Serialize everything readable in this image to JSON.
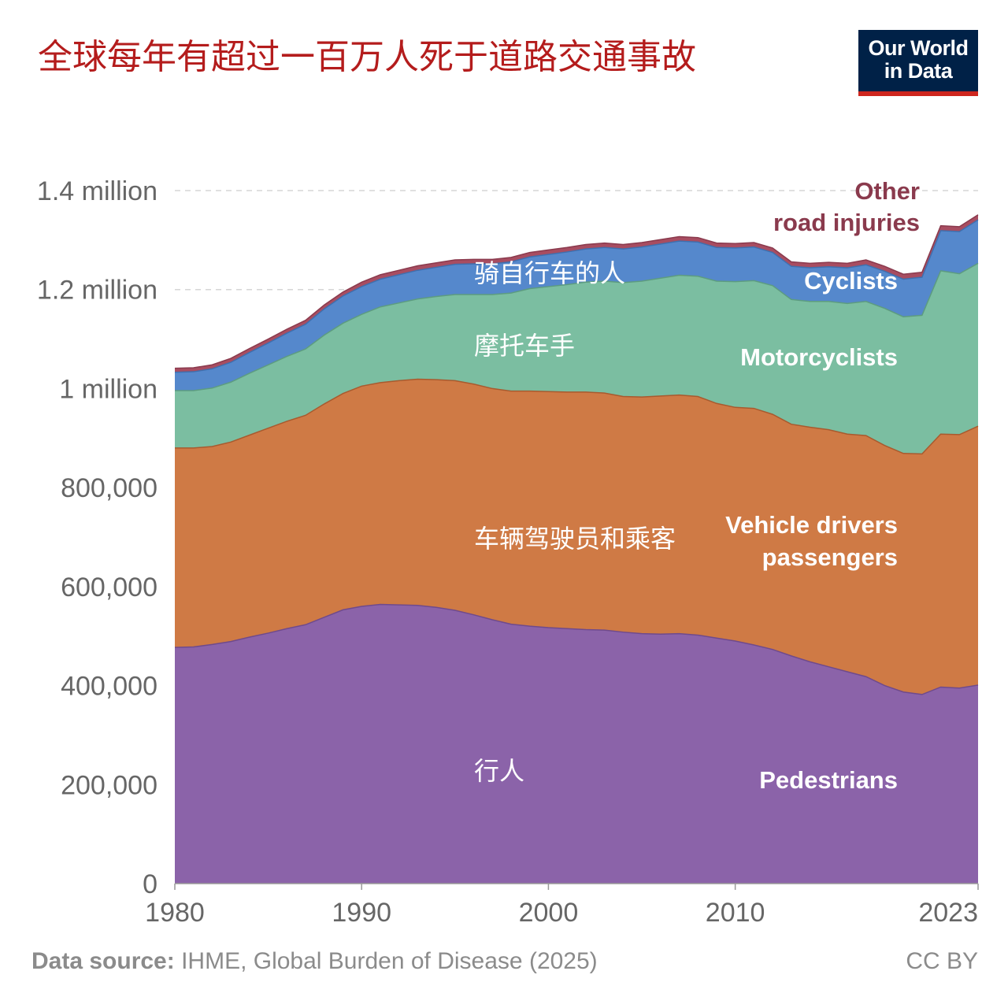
{
  "title": "全球每年有超过一百万人死于道路交通事故",
  "logo": {
    "line1": "Our World",
    "line2": "in Data"
  },
  "footer": {
    "source_label": "Data source:",
    "source_text": "IHME, Global Burden of Disease (2025)",
    "license": "CC BY"
  },
  "colors": {
    "pedestrians": "#8b63a9",
    "vehicle": "#cf7a45",
    "motorcyclists": "#7bbea1",
    "cyclists": "#5588cc",
    "other": "#a84d61",
    "grid": "#d6d6d6",
    "axis_text": "#666666"
  },
  "chart_data": {
    "type": "area",
    "stacked": true,
    "x": [
      1980,
      1981,
      1982,
      1983,
      1984,
      1985,
      1986,
      1987,
      1988,
      1989,
      1990,
      1991,
      1992,
      1993,
      1994,
      1995,
      1996,
      1997,
      1998,
      1999,
      2000,
      2001,
      2002,
      2003,
      2004,
      2005,
      2006,
      2007,
      2008,
      2009,
      2010,
      2011,
      2012,
      2013,
      2014,
      2015,
      2016,
      2017,
      2018,
      2019,
      2020,
      2021,
      2022,
      2023
    ],
    "xticks": [
      "1980",
      "1990",
      "2000",
      "2010",
      "2023"
    ],
    "xtick_values": [
      1980,
      1990,
      2000,
      2010,
      2023
    ],
    "yticks": [
      "0",
      "200,000",
      "400,000",
      "600,000",
      "800,000",
      "1 million",
      "1.2 million",
      "1.4 million"
    ],
    "ytick_values": [
      0,
      200000,
      400000,
      600000,
      800000,
      1000000,
      1200000,
      1400000
    ],
    "ylim": [
      0,
      1400000
    ],
    "grid": true,
    "series": [
      {
        "name": "Pedestrians",
        "label_zh": "行人",
        "values": [
          477000,
          478000,
          483000,
          489000,
          498000,
          506000,
          515000,
          523000,
          538000,
          553000,
          560000,
          564000,
          563000,
          562000,
          558000,
          552000,
          543000,
          533000,
          524000,
          520000,
          517000,
          515000,
          513000,
          512000,
          508000,
          505000,
          504000,
          505000,
          502000,
          496000,
          490000,
          482000,
          473000,
          460000,
          448000,
          438000,
          428000,
          418000,
          400000,
          387000,
          382000,
          397000,
          395000,
          401000
        ]
      },
      {
        "name": "Vehicle drivers & passengers",
        "label_zh": "车辆驾驶员和乘客",
        "values": [
          403000,
          402000,
          400000,
          403000,
          408000,
          414000,
          419000,
          423000,
          431000,
          437000,
          445000,
          448000,
          453000,
          457000,
          460000,
          464000,
          466000,
          467000,
          471000,
          475000,
          477000,
          478000,
          480000,
          479000,
          476000,
          478000,
          481000,
          482000,
          482000,
          474000,
          472000,
          478000,
          475000,
          468000,
          474000,
          479000,
          480000,
          487000,
          485000,
          482000,
          486000,
          511000,
          512000,
          523000
        ]
      },
      {
        "name": "Motorcyclists",
        "label_zh": "摩托车手",
        "values": [
          116000,
          116000,
          118000,
          121000,
          125000,
          128000,
          131000,
          134000,
          139000,
          142000,
          145000,
          153000,
          157000,
          162000,
          168000,
          174000,
          181000,
          190000,
          198000,
          207000,
          212000,
          217000,
          222000,
          226000,
          230000,
          234000,
          238000,
          242000,
          243000,
          247000,
          254000,
          258000,
          260000,
          252000,
          254000,
          259000,
          264000,
          271000,
          277000,
          276000,
          280000,
          330000,
          325000,
          329000
        ]
      },
      {
        "name": "Cyclists",
        "label_zh": "骑自行车的人",
        "values": [
          37000,
          38000,
          39000,
          40000,
          42000,
          44000,
          47000,
          50000,
          53000,
          55000,
          56000,
          56000,
          57000,
          58000,
          59000,
          61000,
          62000,
          62000,
          63000,
          64000,
          65000,
          66000,
          67000,
          68000,
          68000,
          69000,
          69000,
          69000,
          69000,
          68000,
          68000,
          68000,
          67000,
          67000,
          68000,
          70000,
          72000,
          74000,
          75000,
          76000,
          77000,
          81000,
          85000,
          88000
        ]
      },
      {
        "name": "Other road injuries",
        "values": [
          8000,
          8000,
          8000,
          8000,
          8000,
          8000,
          8000,
          8000,
          8000,
          8000,
          9000,
          9000,
          9000,
          9000,
          9000,
          9000,
          9000,
          9000,
          9000,
          9000,
          9000,
          9000,
          9000,
          9000,
          9000,
          9000,
          9000,
          9000,
          9000,
          9000,
          9000,
          9000,
          9000,
          9000,
          9000,
          9000,
          9000,
          10000,
          10000,
          10000,
          10000,
          10000,
          10000,
          10000
        ]
      }
    ],
    "series_labels": [
      {
        "text": "Pedestrians",
        "series": 0
      },
      {
        "text": "Vehicle drivers",
        "series": 1
      },
      {
        "text": "passengers",
        "series": 1
      },
      {
        "text": "Motorcyclists",
        "series": 2
      },
      {
        "text": "Cyclists",
        "series": 3
      },
      {
        "text": "Other",
        "series": 4
      },
      {
        "text": "road injuries",
        "series": 4
      }
    ]
  }
}
